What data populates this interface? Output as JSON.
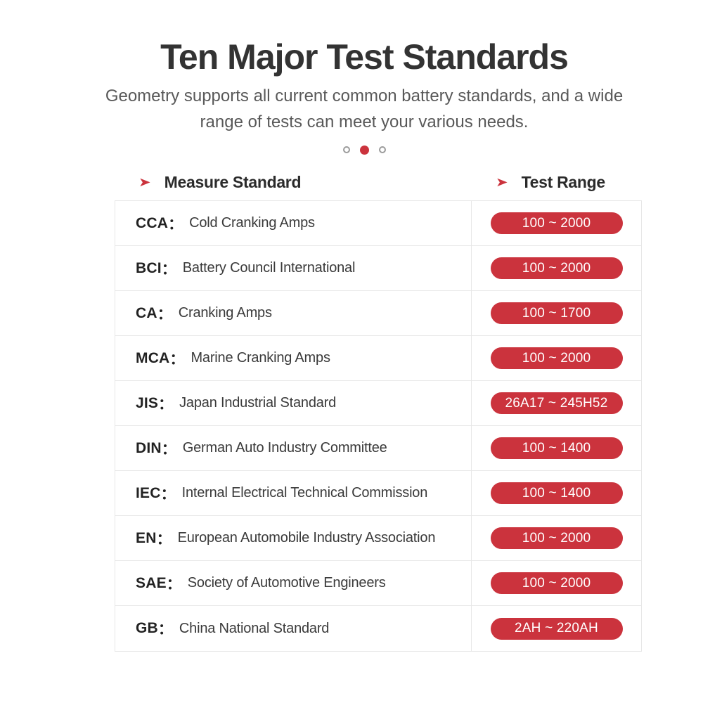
{
  "hero": {
    "title": "Ten Major Test Standards",
    "subtitle_lines": [
      "Geometry supports all current common battery standards, and a wide",
      "range of tests can meet your various needs."
    ]
  },
  "carousel": {
    "dot_count": 3,
    "active_index": 1
  },
  "table": {
    "column_headers": [
      {
        "arrow": "➤",
        "label": "Measure Standard"
      },
      {
        "arrow": "➤",
        "label": "Test Range"
      }
    ],
    "colon": "：",
    "rows": [
      {
        "abbr": "CCA",
        "name": "Cold Cranking Amps",
        "range": "100 ~ 2000"
      },
      {
        "abbr": "BCI",
        "name": "Battery Council International",
        "range": "100 ~ 2000"
      },
      {
        "abbr": "CA",
        "name": "Cranking Amps",
        "range": "100 ~ 1700"
      },
      {
        "abbr": "MCA",
        "name": "Marine Cranking Amps",
        "range": "100 ~ 2000"
      },
      {
        "abbr": "JIS",
        "name": "Japan Industrial Standard",
        "range": "26A17 ~ 245H52"
      },
      {
        "abbr": "DIN",
        "name": "German Auto Industry Committee",
        "range": "100 ~ 1400"
      },
      {
        "abbr": "IEC",
        "name": "Internal Electrical Technical Commission",
        "range": "100 ~ 1400"
      },
      {
        "abbr": "EN",
        "name": "European Automobile Industry Association",
        "range": "100 ~ 2000"
      },
      {
        "abbr": "SAE",
        "name": "Society of Automotive Engineers",
        "range": "100 ~ 2000"
      },
      {
        "abbr": "GB",
        "name": "China National Standard",
        "range": "2AH ~ 220AH"
      }
    ]
  },
  "colors": {
    "accent_red": "#cb333d",
    "title_text": "#333333",
    "subtitle_text": "#595959",
    "row_text": "#3a3a3a",
    "table_border": "#e7e7e7",
    "badge_text": "#ffffff"
  }
}
